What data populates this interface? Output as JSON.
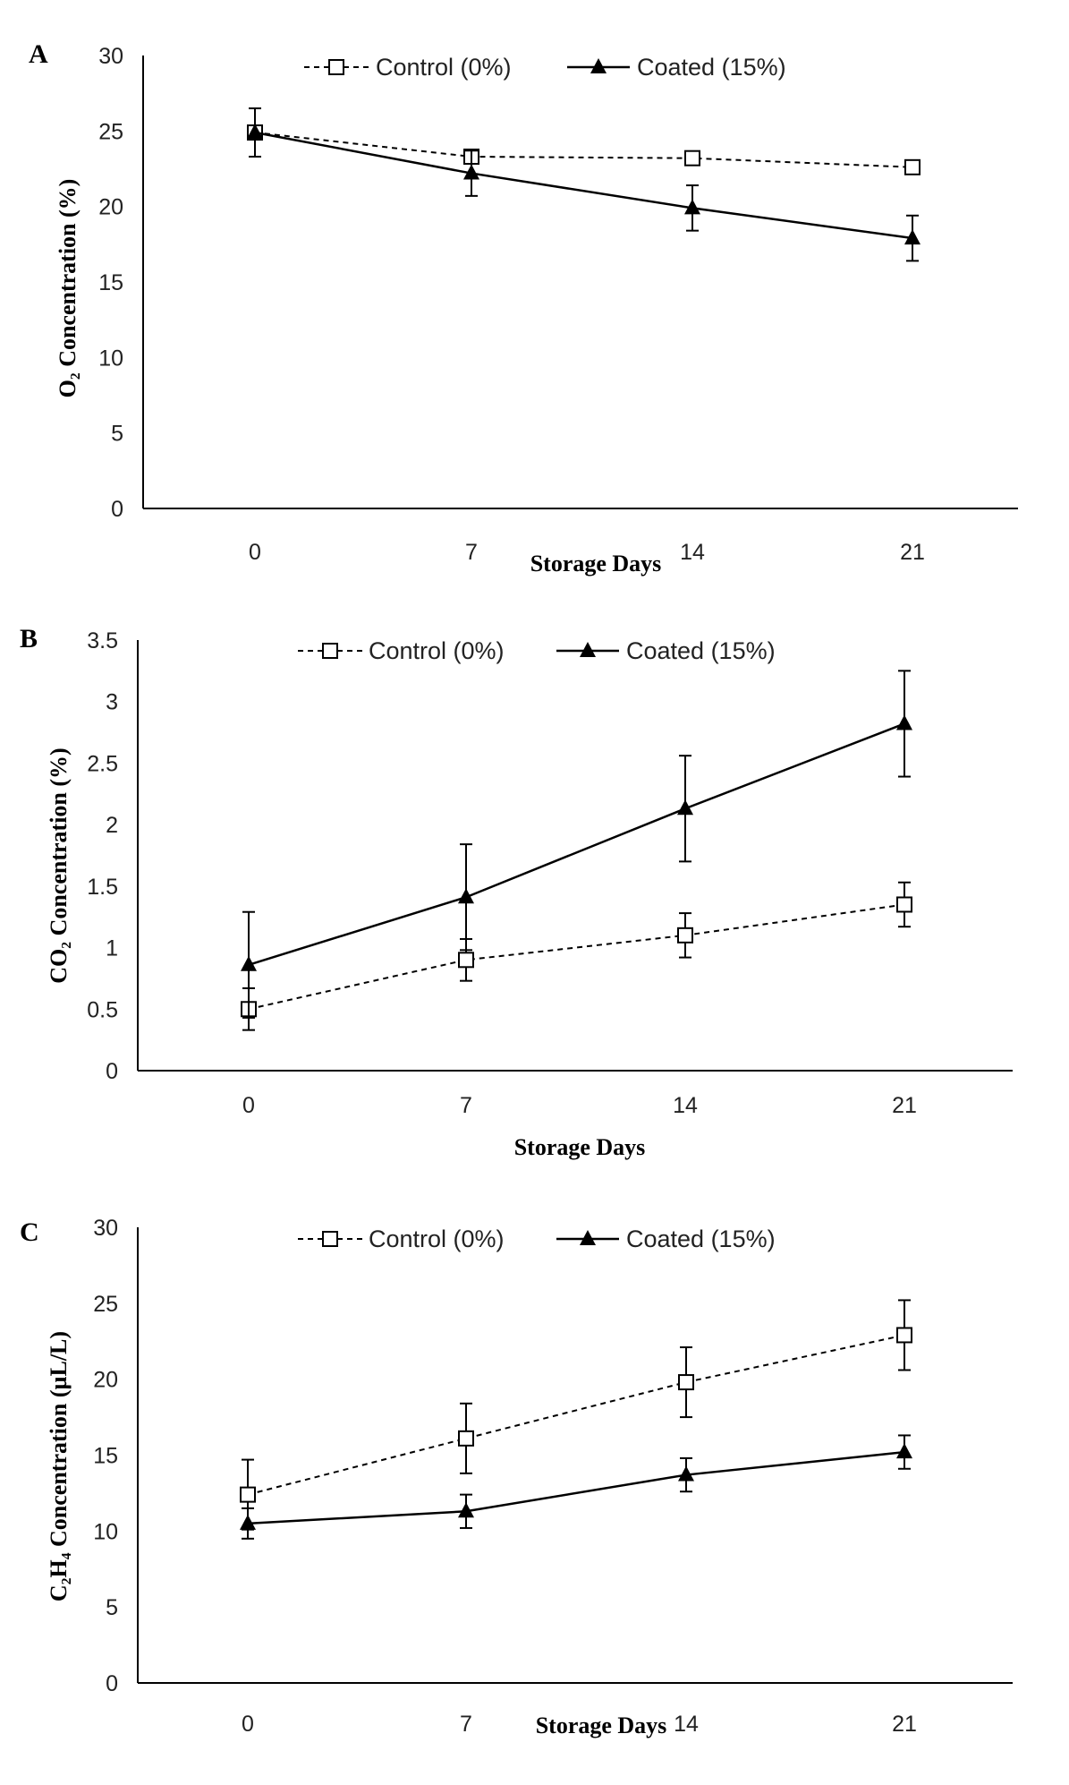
{
  "chart_data": [
    {
      "panel": "A",
      "type": "line",
      "xlabel": "Storage Days",
      "ylabel": "O₂ Concentration (%)",
      "ylim": [
        0,
        30
      ],
      "yticks": [
        "0",
        "5",
        "10",
        "15",
        "20",
        "25",
        "30"
      ],
      "categories": [
        "0",
        "7",
        "14",
        "21"
      ],
      "series": [
        {
          "name": "Control (0%)",
          "style": "dashed",
          "marker": "open-square",
          "values": [
            24.9,
            23.3,
            23.2,
            22.6
          ],
          "errors": [
            0,
            0,
            0,
            0
          ]
        },
        {
          "name": "Coated (15%)",
          "style": "solid",
          "marker": "filled-triangle",
          "values": [
            24.9,
            22.2,
            19.9,
            17.9
          ],
          "errors": [
            1.6,
            1.5,
            1.5,
            1.5
          ]
        }
      ]
    },
    {
      "panel": "B",
      "type": "line",
      "xlabel": "Storage Days",
      "ylabel": "CO₂ Concentration (%)",
      "ylim": [
        0,
        3.5
      ],
      "yticks": [
        "0",
        "0.5",
        "1",
        "1.5",
        "2",
        "2.5",
        "3",
        "3.5"
      ],
      "categories": [
        "0",
        "7",
        "14",
        "21"
      ],
      "series": [
        {
          "name": "Control (0%)",
          "style": "dashed",
          "marker": "open-square",
          "values": [
            0.5,
            0.9,
            1.1,
            1.35
          ],
          "errors": [
            0.17,
            0.17,
            0.18,
            0.18
          ]
        },
        {
          "name": "Coated (15%)",
          "style": "solid",
          "marker": "filled-triangle",
          "values": [
            0.86,
            1.41,
            2.13,
            2.82
          ],
          "errors": [
            0.43,
            0.43,
            0.43,
            0.43
          ]
        }
      ]
    },
    {
      "panel": "C",
      "type": "line",
      "xlabel": "Storage Days",
      "ylabel": "C₂H₄ Concentration (µL/L)",
      "ylim": [
        0,
        30
      ],
      "yticks": [
        "0",
        "5",
        "10",
        "15",
        "20",
        "25",
        "30"
      ],
      "categories": [
        "0",
        "7",
        "14",
        "21"
      ],
      "series": [
        {
          "name": "Control (0%)",
          "style": "dashed",
          "marker": "open-square",
          "values": [
            12.4,
            16.1,
            19.8,
            22.9
          ],
          "errors": [
            2.3,
            2.3,
            2.3,
            2.3
          ]
        },
        {
          "name": "Coated (15%)",
          "style": "solid",
          "marker": "filled-triangle",
          "values": [
            10.5,
            11.3,
            13.7,
            15.2
          ],
          "errors": [
            1.0,
            1.1,
            1.1,
            1.1
          ]
        }
      ]
    }
  ]
}
